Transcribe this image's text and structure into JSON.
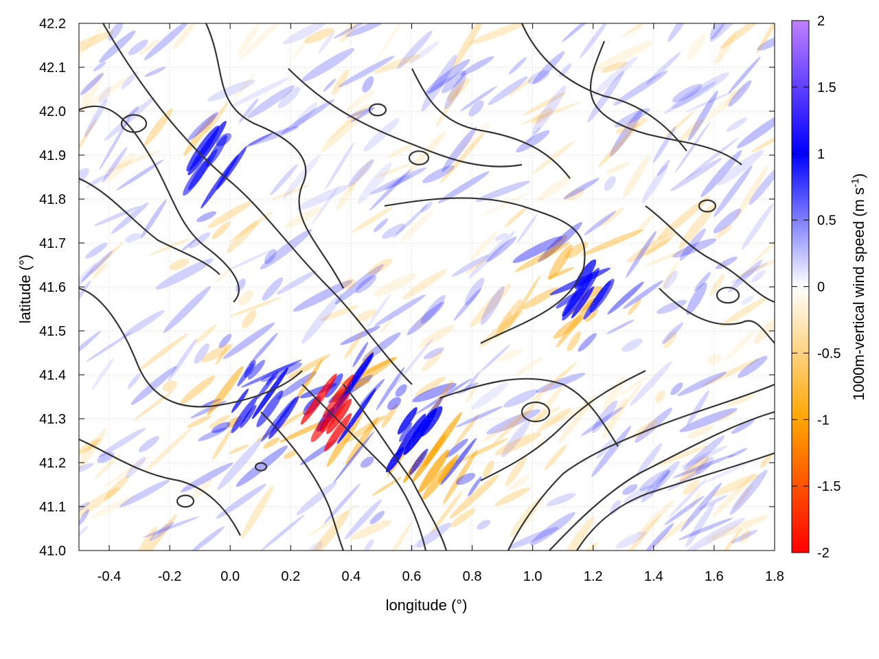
{
  "chart_data": {
    "type": "heatmap",
    "title": "",
    "xlabel": "longitude (°)",
    "ylabel": "latitude (°)",
    "xlim": [
      -0.5,
      1.8
    ],
    "ylim": [
      41.0,
      42.2
    ],
    "x_ticks": [
      "-0.4",
      "-0.2",
      "0.0",
      "0.2",
      "0.4",
      "0.6",
      "0.8",
      "1.0",
      "1.2",
      "1.4",
      "1.6",
      "1.8"
    ],
    "y_ticks": [
      "41.0",
      "41.1",
      "41.2",
      "41.3",
      "41.4",
      "41.5",
      "41.6",
      "41.7",
      "41.8",
      "41.9",
      "42.0",
      "42.1",
      "42.2"
    ],
    "grid": true,
    "colorbar": {
      "label_main": "1000m-vertical wind speed (m s",
      "label_sup": "-1",
      "label_end": ")",
      "range": [
        -2,
        2
      ],
      "ticks": [
        "-2",
        "-1.5",
        "-1",
        "-0.5",
        "0",
        "0.5",
        "1",
        "1.5",
        "2"
      ],
      "colors": {
        "-2": "#ff0000",
        "-1": "#ffa500",
        "0": "#ffffff",
        "1": "#0000ff",
        "2": "#c080ff"
      }
    },
    "contour_color": "#333333",
    "features": [
      {
        "name": "updraft band",
        "lon": 0.35,
        "lat": 41.35,
        "w": 0.8,
        "type": "up"
      },
      {
        "name": "downdraft core",
        "lon": 0.33,
        "lat": 41.3,
        "w": -1.6,
        "type": "down"
      },
      {
        "name": "downdraft band",
        "lon": 0.65,
        "lat": 41.2,
        "w": -1.2,
        "type": "down"
      },
      {
        "name": "updraft band",
        "lon": 0.6,
        "lat": 41.25,
        "w": 1.0,
        "type": "up"
      },
      {
        "name": "updraft streak",
        "lon": 0.1,
        "lat": 41.35,
        "w": 0.9,
        "type": "up"
      },
      {
        "name": "updraft streak",
        "lon": -0.05,
        "lat": 41.88,
        "w": 0.8,
        "type": "up"
      },
      {
        "name": "updraft streak",
        "lon": 1.15,
        "lat": 41.6,
        "w": 0.7,
        "type": "up"
      }
    ]
  }
}
